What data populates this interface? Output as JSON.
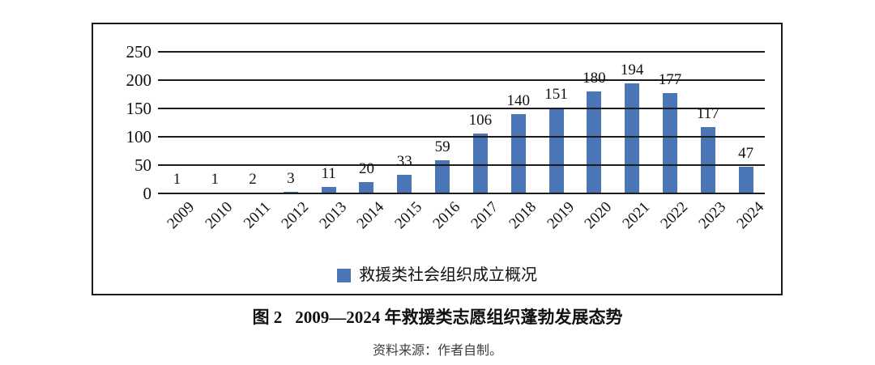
{
  "figure": {
    "caption_label": "图 2",
    "caption_title": "2009—2024 年救援类志愿组织蓬勃发展态势",
    "source_note": "资料来源：作者自制。"
  },
  "legend": {
    "label": "救援类社会组织成立概况",
    "swatch_color": "#4a76b8"
  },
  "chart_data": {
    "type": "bar",
    "title": "",
    "xlabel": "",
    "ylabel": "",
    "categories": [
      "2009",
      "2010",
      "2011",
      "2012",
      "2013",
      "2014",
      "2015",
      "2016",
      "2017",
      "2018",
      "2019",
      "2020",
      "2021",
      "2022",
      "2023",
      "2024"
    ],
    "series": [
      {
        "name": "救援类社会组织成立概况",
        "values": [
          1,
          1,
          2,
          3,
          11,
          20,
          33,
          59,
          106,
          140,
          151,
          180,
          194,
          177,
          117,
          47
        ]
      }
    ],
    "ylim": [
      0,
      250
    ],
    "yticks": [
      0,
      50,
      100,
      150,
      200,
      250
    ],
    "bar_color": "#4a76b8",
    "gridline_color": "#1c1c1c",
    "grid": true,
    "value_labels": true,
    "x_tick_rotation": 45,
    "legend_position": "bottom"
  }
}
